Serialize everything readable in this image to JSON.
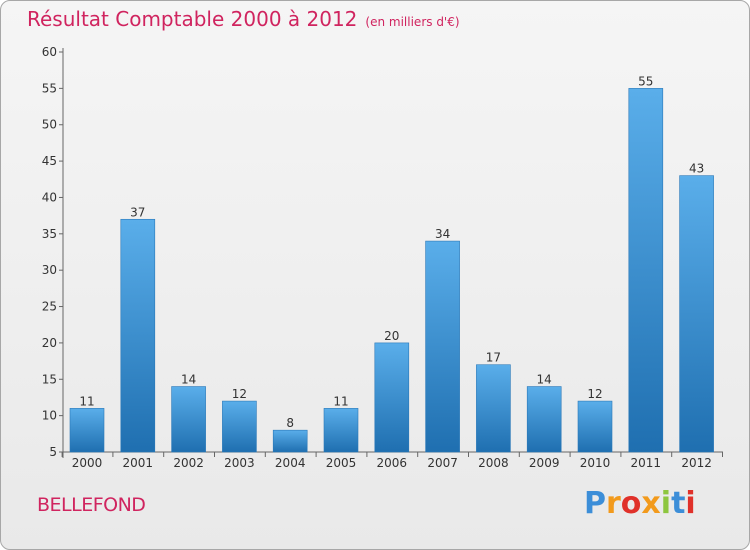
{
  "header": {
    "title": "Résultat Comptable 2000 à 2012",
    "subtitle": "(en milliers d'€)"
  },
  "commune": "BELLEFOND",
  "logo": {
    "text": "Proxiti",
    "letters": [
      "P",
      "r",
      "o",
      "x",
      "i",
      "t",
      "i"
    ],
    "colors": [
      "#3c8ed8",
      "#f29a1c",
      "#e0312a",
      "#f29a1c",
      "#8dc63f",
      "#3c8ed8",
      "#e0312a"
    ]
  },
  "colors": {
    "accent": "#d0245f",
    "bar_top": "#5aaeea",
    "bar_bottom": "#1f6fb0"
  },
  "chart_data": {
    "type": "bar",
    "title": "Résultat Comptable 2000 à 2012",
    "xlabel": "",
    "ylabel": "",
    "categories": [
      "2000",
      "2001",
      "2002",
      "2003",
      "2004",
      "2005",
      "2006",
      "2007",
      "2008",
      "2009",
      "2010",
      "2011",
      "2012"
    ],
    "values": [
      11,
      37,
      14,
      12,
      8,
      11,
      20,
      34,
      17,
      14,
      12,
      55,
      43
    ],
    "ylim": [
      5,
      60
    ],
    "yticks": [
      5,
      10,
      15,
      20,
      25,
      30,
      35,
      40,
      45,
      50,
      55,
      60
    ],
    "grid": false,
    "data_labels": true
  }
}
